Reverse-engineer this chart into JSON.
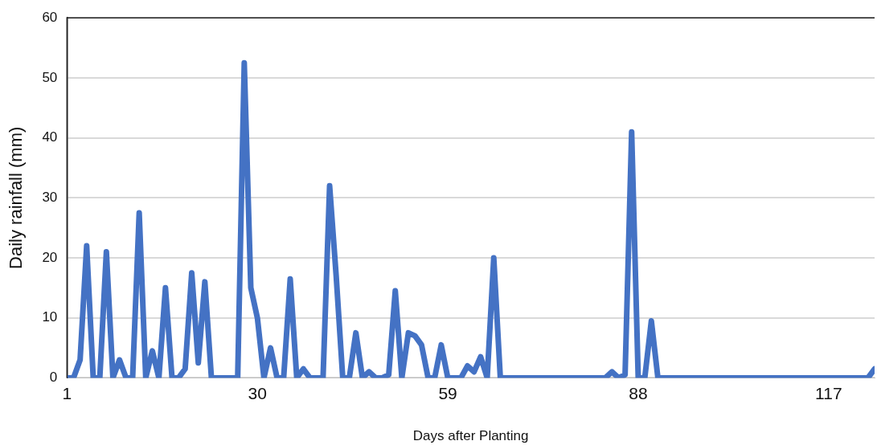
{
  "chart_data": {
    "type": "line",
    "xlabel": "Days after Planting",
    "ylabel": "Daily rainfall (mm)",
    "x": [
      1,
      2,
      3,
      4,
      5,
      6,
      7,
      8,
      9,
      10,
      11,
      12,
      13,
      14,
      15,
      16,
      17,
      18,
      19,
      20,
      21,
      22,
      23,
      24,
      25,
      26,
      27,
      28,
      29,
      30,
      31,
      32,
      33,
      34,
      35,
      36,
      37,
      38,
      39,
      40,
      41,
      42,
      43,
      44,
      45,
      46,
      47,
      48,
      49,
      50,
      51,
      52,
      53,
      54,
      55,
      56,
      57,
      58,
      59,
      60,
      61,
      62,
      63,
      64,
      65,
      66,
      67,
      68,
      69,
      70,
      71,
      72,
      73,
      74,
      75,
      76,
      77,
      78,
      79,
      80,
      81,
      82,
      83,
      84,
      85,
      86,
      87,
      88,
      89,
      90,
      91,
      92,
      93,
      94,
      95,
      96,
      97,
      98,
      99,
      100,
      101,
      102,
      103,
      104,
      105,
      106,
      107,
      108,
      109,
      110,
      111,
      112,
      113,
      114,
      115,
      116,
      117,
      118,
      119,
      120,
      121,
      122,
      123,
      124
    ],
    "series": [
      {
        "color": "#4472c4",
        "values": [
          0,
          0,
          3,
          22,
          0,
          0,
          21,
          0,
          3,
          0,
          0,
          27.5,
          0,
          4.5,
          0,
          15,
          0,
          0,
          1.5,
          17.5,
          2.5,
          16,
          0,
          0,
          0,
          0,
          0,
          52.5,
          15,
          10,
          0,
          5,
          0,
          0,
          16.5,
          0,
          1.5,
          0,
          0,
          0,
          32,
          17,
          0,
          0,
          7.5,
          0,
          1,
          0,
          0,
          0.5,
          14.5,
          0,
          7.5,
          7,
          5.5,
          0,
          0,
          5.5,
          0,
          0,
          0,
          2,
          1,
          3.5,
          0,
          20,
          0,
          0,
          0,
          0,
          0,
          0,
          0,
          0,
          0,
          0,
          0,
          0,
          0,
          0,
          0,
          0,
          0,
          1,
          0,
          0.5,
          41,
          0,
          0,
          9.5,
          0,
          0,
          0,
          0,
          0,
          0,
          0,
          0,
          0,
          0,
          0,
          0,
          0,
          0,
          0,
          0,
          0,
          0,
          0,
          0,
          0,
          0,
          0,
          0,
          0,
          0,
          0,
          0,
          0,
          0,
          0,
          0,
          0,
          1.5
        ]
      }
    ],
    "xlim": [
      1,
      124
    ],
    "xticks": [
      1,
      30,
      59,
      88,
      117
    ],
    "ylim": [
      0,
      60
    ],
    "yticks": [
      0,
      10,
      20,
      30,
      40,
      50,
      60
    ],
    "grid": "y",
    "legend": false,
    "marker": "none",
    "line_style": "solid"
  }
}
